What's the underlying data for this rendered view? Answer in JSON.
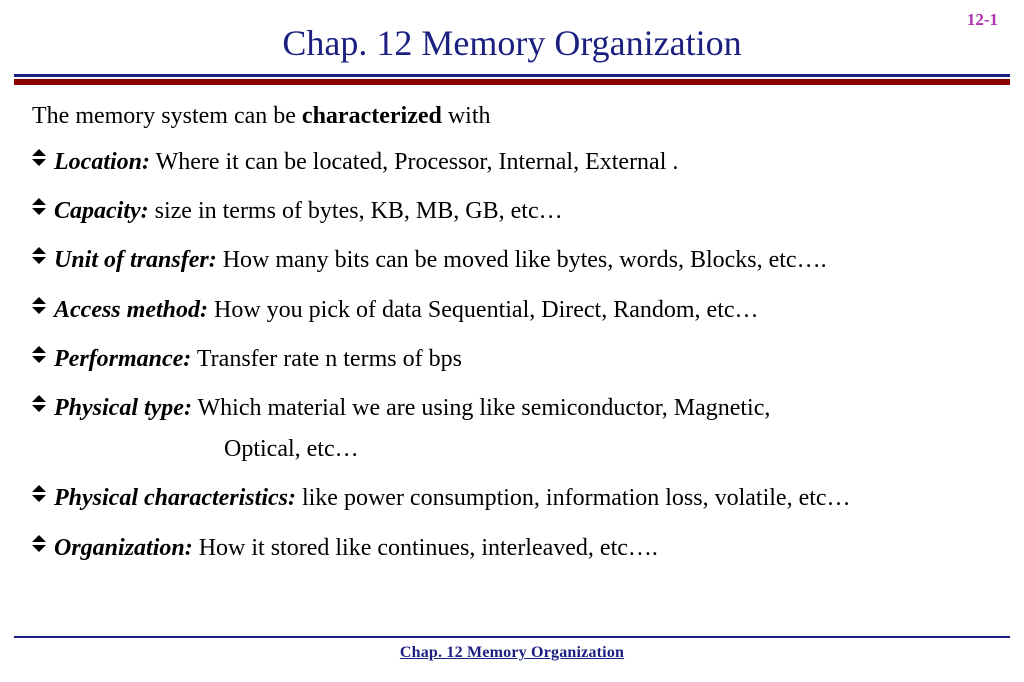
{
  "colors": {
    "title": "#1a1f80",
    "pagenum": "#b030b0",
    "rule_blue": "#1a1f80",
    "rule_red": "#8b0000",
    "foot_rule": "#1a1f80",
    "foot_text": "#1a1f80",
    "text": "#000000",
    "background": "#ffffff"
  },
  "page_number": "12-1",
  "title": "Chap. 12  Memory Organization",
  "intro_pre": "The memory system can be ",
  "intro_bold": "characterized",
  "intro_post": " with",
  "items": [
    {
      "term": "Location:",
      "desc": " Where it can be located, Processor, Internal, External ."
    },
    {
      "term": "Capacity:",
      "desc": " size in terms of bytes, KB, MB, GB, etc…"
    },
    {
      "term": "Unit of transfer:",
      "desc": " How many bits can be moved like bytes, words, Blocks, etc…."
    },
    {
      "term": "Access method:",
      "desc": " How you pick of data Sequential, Direct, Random, etc…"
    },
    {
      "term": "Performance:",
      "desc": " Transfer rate n terms of bps"
    },
    {
      "term": "Physical type:",
      "desc": " Which material we are using like semiconductor, Magnetic,",
      "cont": "Optical, etc…"
    },
    {
      "term": "Physical characteristics:",
      "desc": " like power consumption, information loss, volatile, etc…"
    },
    {
      "term": "Organization:",
      "desc": " How it stored like continues, interleaved, etc…."
    }
  ],
  "footer": "Chap. 12  Memory Organization",
  "typography": {
    "title_fontsize": 36,
    "body_fontsize": 24,
    "pagenum_fontsize": 17,
    "footer_fontsize": 16,
    "font_family": "Times New Roman"
  }
}
